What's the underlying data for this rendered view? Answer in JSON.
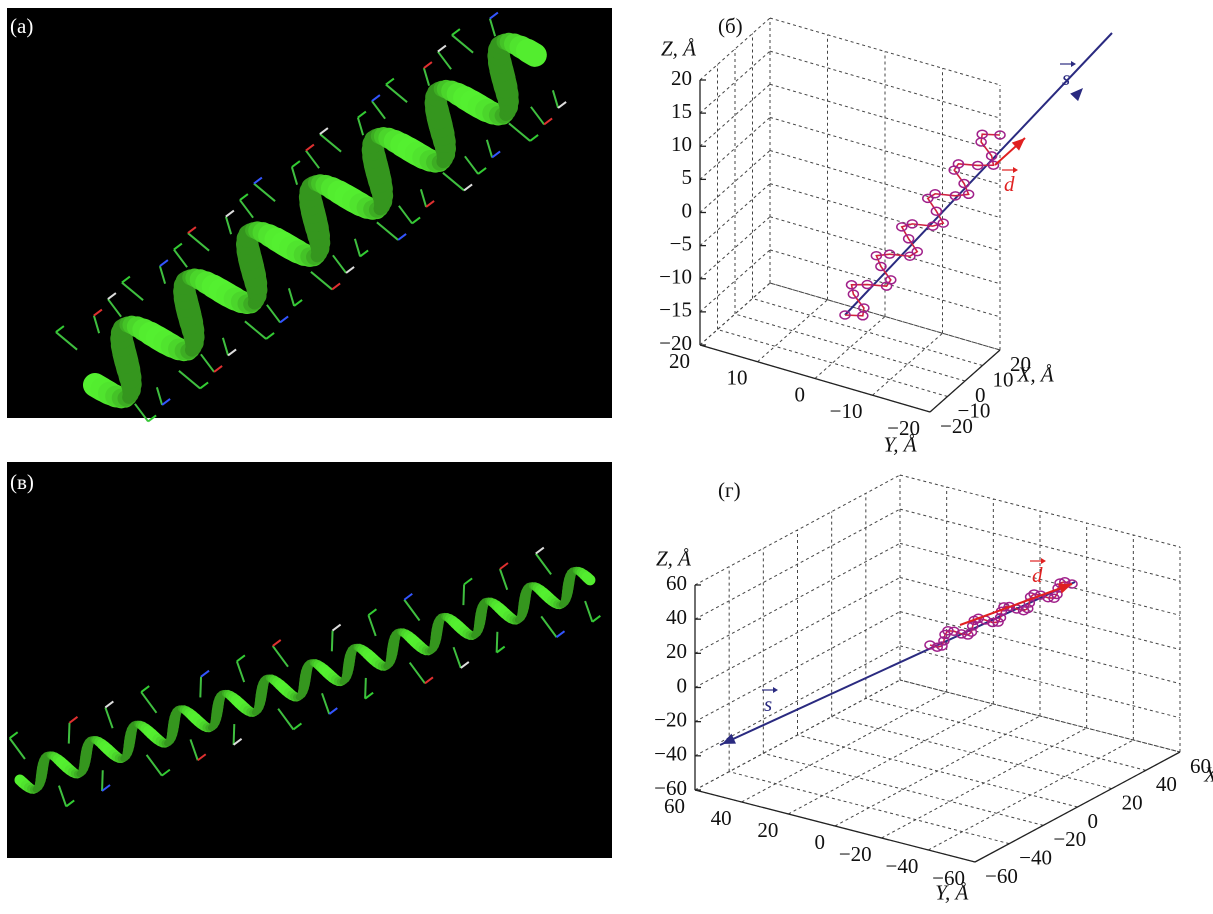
{
  "panels": [
    {
      "label": "(а)"
    },
    {
      "label": "(б)",
      "z_axis_label": "Z, Å",
      "x_axis_label": "X, Å",
      "y_axis_label": "Y, Å",
      "z_ticks": [
        "20",
        "15",
        "10",
        "5",
        "0",
        "−5",
        "−10",
        "−15",
        "−20"
      ],
      "x_ticks": [
        "−20",
        "−10",
        "0",
        "10",
        "20"
      ],
      "y_ticks": [
        "20",
        "10",
        "0",
        "−10",
        "−20"
      ],
      "s_label": "s",
      "d_label": "d"
    },
    {
      "label": "(в)"
    },
    {
      "label": "(г)",
      "z_axis_label": "Z, Å",
      "x_axis_label": "X, Å",
      "y_axis_label": "Y, Å",
      "z_ticks": [
        "60",
        "40",
        "20",
        "0",
        "−20",
        "−40",
        "−60"
      ],
      "x_ticks": [
        "−60",
        "−40",
        "−20",
        "0",
        "20",
        "40",
        "60"
      ],
      "y_ticks": [
        "60",
        "40",
        "20",
        "0",
        "−20",
        "−40",
        "−60"
      ],
      "s_label": "s",
      "d_label": "d"
    }
  ]
}
